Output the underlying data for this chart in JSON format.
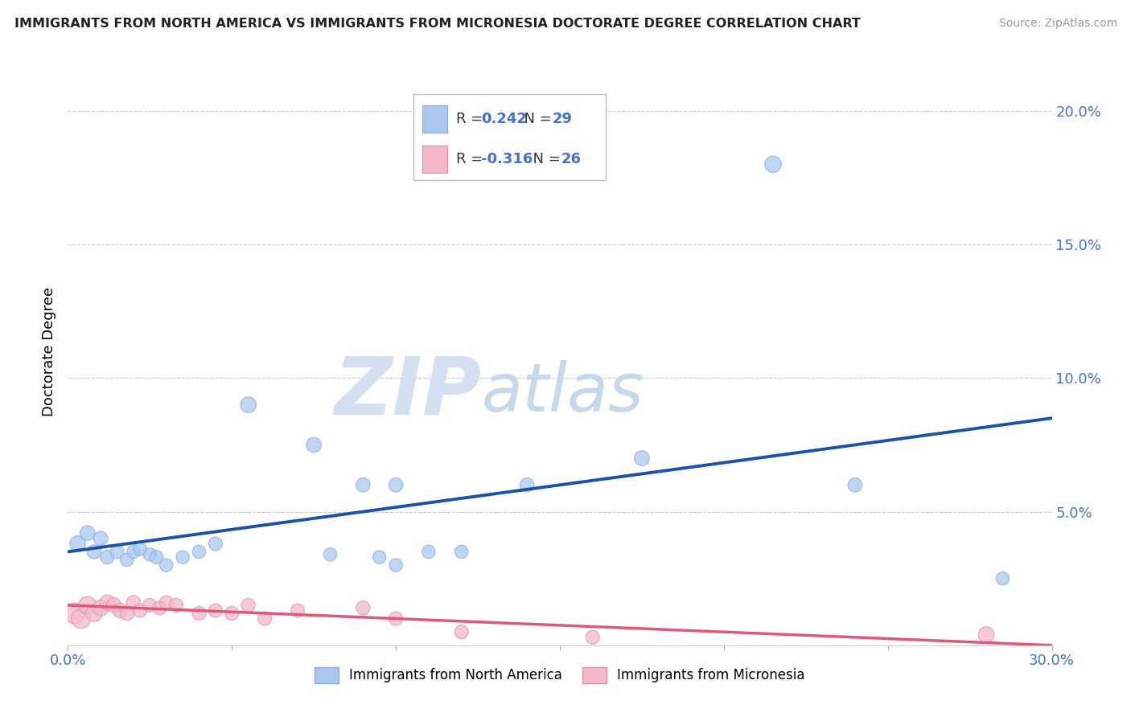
{
  "title": "IMMIGRANTS FROM NORTH AMERICA VS IMMIGRANTS FROM MICRONESIA DOCTORATE DEGREE CORRELATION CHART",
  "source": "Source: ZipAtlas.com",
  "ylabel": "Doctorate Degree",
  "xlim": [
    0.0,
    0.3
  ],
  "ylim": [
    0.0,
    0.22
  ],
  "xticks": [
    0.0,
    0.05,
    0.1,
    0.15,
    0.2,
    0.25,
    0.3
  ],
  "yticks": [
    0.0,
    0.05,
    0.1,
    0.15,
    0.2
  ],
  "R_blue": 0.242,
  "N_blue": 29,
  "R_pink": -0.316,
  "N_pink": 26,
  "blue_color": "#A8C8F0",
  "pink_color": "#F5B8C8",
  "blue_line_color": "#1A52A8",
  "pink_line_color": "#E05878",
  "tick_color": "#4472C4",
  "blue_x": [
    0.003,
    0.006,
    0.008,
    0.01,
    0.012,
    0.015,
    0.018,
    0.02,
    0.022,
    0.025,
    0.027,
    0.03,
    0.035,
    0.04,
    0.045,
    0.055,
    0.075,
    0.08,
    0.09,
    0.095,
    0.1,
    0.1,
    0.11,
    0.12,
    0.14,
    0.175,
    0.215,
    0.24,
    0.285
  ],
  "blue_y": [
    0.038,
    0.042,
    0.035,
    0.04,
    0.033,
    0.035,
    0.032,
    0.035,
    0.036,
    0.034,
    0.033,
    0.03,
    0.033,
    0.035,
    0.038,
    0.09,
    0.075,
    0.034,
    0.06,
    0.033,
    0.03,
    0.06,
    0.035,
    0.035,
    0.06,
    0.07,
    0.18,
    0.06,
    0.025
  ],
  "pink_x": [
    0.002,
    0.004,
    0.006,
    0.008,
    0.01,
    0.012,
    0.014,
    0.016,
    0.018,
    0.02,
    0.022,
    0.025,
    0.028,
    0.03,
    0.033,
    0.04,
    0.045,
    0.05,
    0.055,
    0.06,
    0.07,
    0.09,
    0.1,
    0.12,
    0.16,
    0.28
  ],
  "pink_y": [
    0.012,
    0.01,
    0.015,
    0.012,
    0.014,
    0.016,
    0.015,
    0.013,
    0.012,
    0.016,
    0.013,
    0.015,
    0.014,
    0.016,
    0.015,
    0.012,
    0.013,
    0.012,
    0.015,
    0.01,
    0.013,
    0.014,
    0.01,
    0.005,
    0.003,
    0.004
  ],
  "blue_sizes": [
    200,
    180,
    160,
    160,
    150,
    150,
    140,
    140,
    140,
    140,
    140,
    140,
    140,
    140,
    150,
    200,
    180,
    140,
    160,
    140,
    140,
    160,
    140,
    140,
    160,
    180,
    220,
    160,
    140
  ],
  "pink_sizes": [
    350,
    300,
    250,
    220,
    200,
    190,
    180,
    170,
    160,
    160,
    150,
    150,
    150,
    150,
    150,
    150,
    150,
    150,
    150,
    150,
    150,
    150,
    150,
    150,
    150,
    200
  ]
}
